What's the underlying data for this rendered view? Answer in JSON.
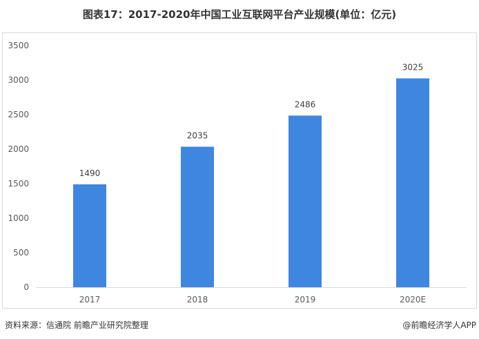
{
  "chart_data": {
    "type": "bar",
    "title": "图表17：2017-2020年中国工业互联网平台产业规模(单位：亿元)",
    "categories": [
      "2017",
      "2018",
      "2019",
      "2020E"
    ],
    "values": [
      1490,
      2035,
      2486,
      3025
    ],
    "ylim": [
      0,
      3500
    ],
    "yticks": [
      0,
      500,
      1000,
      1500,
      2000,
      2500,
      3000,
      3500
    ],
    "xlabel": "",
    "ylabel": "",
    "grid": false,
    "bar_color": "#3f86e0"
  },
  "footer": {
    "source": "资料来源：信通院 前瞻产业研究院整理",
    "credit": "@前瞻经济学人APP"
  }
}
